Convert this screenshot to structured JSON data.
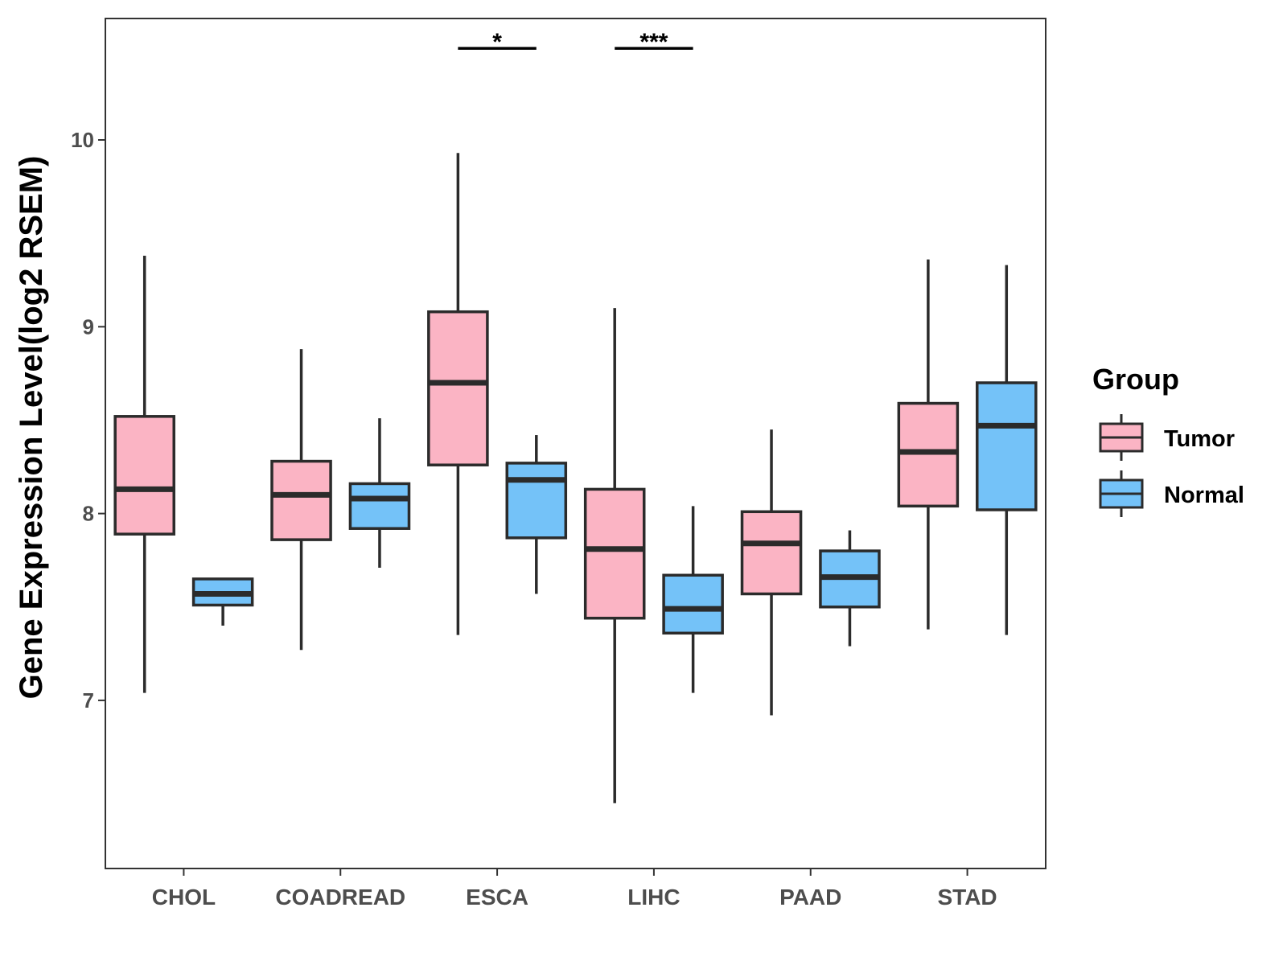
{
  "chart_data": {
    "type": "boxplot",
    "title": "",
    "xlabel": "",
    "ylabel": "Gene Expression Level(log2 RSEM)",
    "ylim": [
      6.1,
      10.65
    ],
    "yticks": [
      7,
      8,
      9,
      10
    ],
    "ytick_labels": [
      "7",
      "8",
      "9",
      "10"
    ],
    "categories": [
      "CHOL",
      "COADREAD",
      "ESCA",
      "LIHC",
      "PAAD",
      "STAD"
    ],
    "legend": {
      "title": "Group",
      "position": "right"
    },
    "series": [
      {
        "name": "Tumor",
        "color": "#FBB4C4",
        "boxes": [
          {
            "whisker_low": 7.04,
            "q1": 7.89,
            "median": 8.13,
            "q3": 8.52,
            "whisker_high": 9.38
          },
          {
            "whisker_low": 7.27,
            "q1": 7.86,
            "median": 8.1,
            "q3": 8.28,
            "whisker_high": 8.88
          },
          {
            "whisker_low": 7.35,
            "q1": 8.26,
            "median": 8.7,
            "q3": 9.08,
            "whisker_high": 9.93
          },
          {
            "whisker_low": 6.45,
            "q1": 7.44,
            "median": 7.81,
            "q3": 8.13,
            "whisker_high": 9.1
          },
          {
            "whisker_low": 6.92,
            "q1": 7.57,
            "median": 7.84,
            "q3": 8.01,
            "whisker_high": 8.45
          },
          {
            "whisker_low": 7.38,
            "q1": 8.04,
            "median": 8.33,
            "q3": 8.59,
            "whisker_high": 9.36
          }
        ]
      },
      {
        "name": "Normal",
        "color": "#74C2F8",
        "boxes": [
          {
            "whisker_low": 7.4,
            "q1": 7.51,
            "median": 7.57,
            "q3": 7.65,
            "whisker_high": 7.65
          },
          {
            "whisker_low": 7.71,
            "q1": 7.92,
            "median": 8.08,
            "q3": 8.16,
            "whisker_high": 8.51
          },
          {
            "whisker_low": 7.57,
            "q1": 7.87,
            "median": 8.18,
            "q3": 8.27,
            "whisker_high": 8.42
          },
          {
            "whisker_low": 7.04,
            "q1": 7.36,
            "median": 7.49,
            "q3": 7.67,
            "whisker_high": 8.04
          },
          {
            "whisker_low": 7.29,
            "q1": 7.5,
            "median": 7.66,
            "q3": 7.8,
            "whisker_high": 7.91
          },
          {
            "whisker_low": 7.35,
            "q1": 8.02,
            "median": 8.47,
            "q3": 8.7,
            "whisker_high": 9.33
          }
        ]
      }
    ],
    "annotations": [
      {
        "category": "ESCA",
        "label": "*",
        "y": 10.49
      },
      {
        "category": "LIHC",
        "label": "***",
        "y": 10.49
      }
    ]
  }
}
